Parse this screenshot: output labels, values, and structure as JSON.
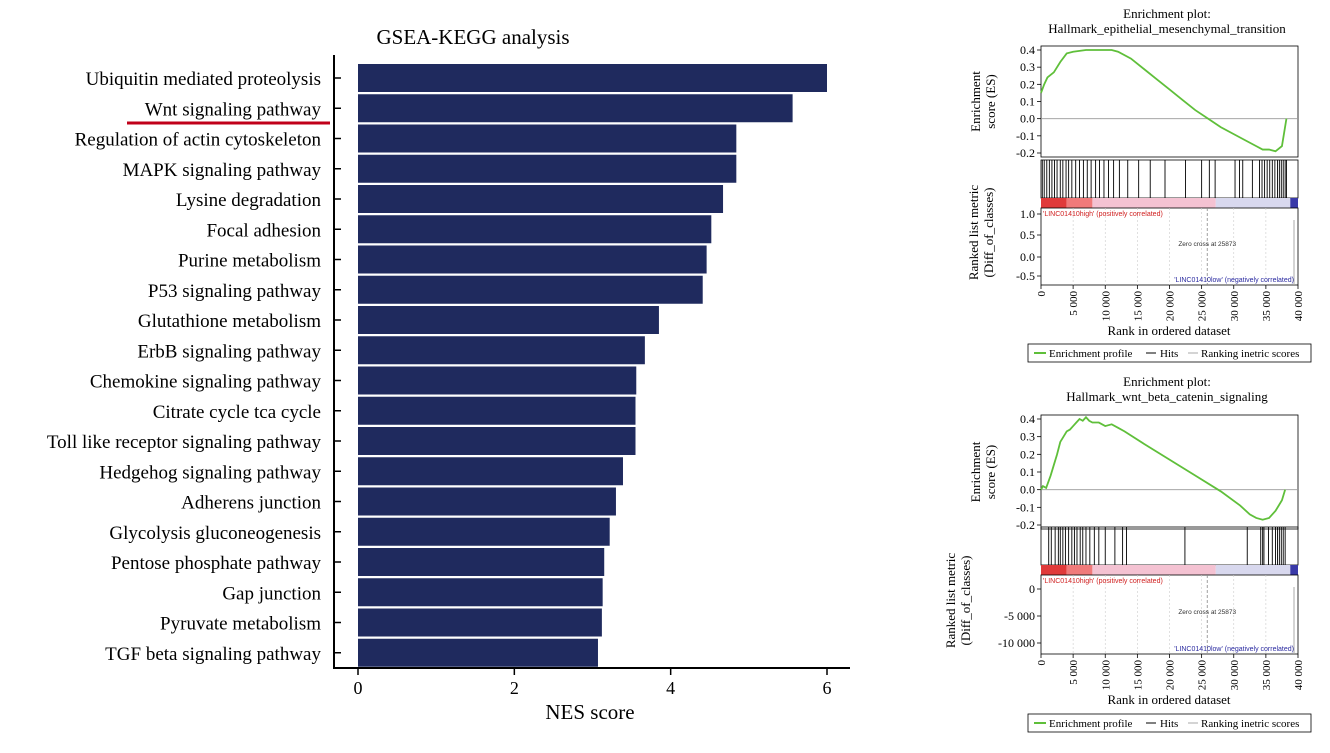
{
  "chart_data": [
    {
      "type": "bar",
      "orientation": "horizontal",
      "title": "GSEA-KEGG analysis",
      "xlabel": "NES score",
      "xlim": [
        0,
        6.3
      ],
      "xticks": [
        "0",
        "2",
        "4",
        "6"
      ],
      "highlight_category": "Wnt signaling pathway",
      "colors": {
        "bar": "#1f2a5e",
        "highlight_underline": "#c0001a"
      },
      "categories": [
        "Ubiquitin mediated proteolysis",
        "Wnt signaling pathway",
        "Regulation of actin cytoskeleton",
        "MAPK signaling pathway",
        "Lysine degradation",
        "Focal adhesion",
        "Purine metabolism",
        "P53 signaling pathway",
        "Glutathione metabolism",
        "ErbB signaling pathway",
        "Chemokine signaling pathway",
        "Citrate cycle tca cycle",
        "Toll like receptor signaling pathway",
        "Hedgehog signaling pathway",
        "Adherens junction",
        "Glycolysis gluconeogenesis",
        "Pentose phosphate pathway",
        "Gap junction",
        "Pyruvate metabolism",
        "TGF beta signaling pathway"
      ],
      "values": [
        6.0,
        5.56,
        4.84,
        4.84,
        4.67,
        4.52,
        4.46,
        4.41,
        3.85,
        3.67,
        3.56,
        3.55,
        3.55,
        3.39,
        3.3,
        3.22,
        3.15,
        3.13,
        3.12,
        3.07
      ]
    },
    {
      "type": "line",
      "title": "Enrichment plot:",
      "subtitle": "Hallmark_epithelial_mesenchymal_transition",
      "ylabel": "Enrichment\nscore (ES)",
      "ylim": [
        -0.2,
        0.4
      ],
      "yticks": [
        "0.4",
        "0.3",
        "0.2",
        "0.1",
        "0.0",
        "-0.1",
        "-0.2"
      ],
      "x": [
        0,
        500,
        1000,
        2000,
        3000,
        4000,
        5000,
        7000,
        9000,
        11000,
        12000,
        14000,
        16000,
        18000,
        20000,
        22000,
        24000,
        26000,
        28000,
        30000,
        32000,
        33500,
        34500,
        35500,
        36500,
        37500,
        38200
      ],
      "y": [
        0.15,
        0.2,
        0.24,
        0.27,
        0.33,
        0.38,
        0.39,
        0.4,
        0.4,
        0.4,
        0.39,
        0.35,
        0.29,
        0.23,
        0.17,
        0.11,
        0.05,
        0.0,
        -0.05,
        -0.09,
        -0.13,
        -0.16,
        -0.18,
        -0.18,
        -0.19,
        -0.16,
        0.0
      ],
      "hits": [
        200,
        500,
        900,
        1300,
        1700,
        2100,
        2500,
        3000,
        3400,
        3900,
        4300,
        4800,
        5400,
        6000,
        6600,
        7200,
        7800,
        8500,
        9100,
        9800,
        10500,
        11300,
        12200,
        13500,
        15200,
        17000,
        19300,
        22500,
        25000,
        26200,
        27100,
        30200,
        30900,
        31400,
        32900,
        34000,
        34400,
        34800,
        35200,
        35600,
        36000,
        36400,
        36800,
        37100,
        37400,
        37700,
        38000,
        38200
      ],
      "metric_ylabel": "Ranked list metric\n(Diff_of_classes)",
      "metric_yticks": [
        "1.0",
        "0.5",
        "0.0",
        "-0.5"
      ],
      "xlabel": "Rank in ordered dataset",
      "xticks": [
        "0",
        "5 000",
        "10 000",
        "15 000",
        "20 000",
        "25 000",
        "30 000",
        "35 000",
        "40 000"
      ],
      "pos_label": "'LINC01410high' (positively correlated)",
      "neg_label": "'LINC01410low' (negatively correlated)",
      "zero_cross": "Zero cross at 25873",
      "legend": [
        "Enrichment profile",
        "Hits",
        "Ranking inetric scores"
      ],
      "colors": {
        "profile": "#5fbf3a",
        "hits": "#000000"
      }
    },
    {
      "type": "line",
      "title": "Enrichment plot:",
      "subtitle": "Hallmark_wnt_beta_catenin_signaling",
      "ylabel": "Enrichment\nscore (ES)",
      "ylim": [
        -0.2,
        0.4
      ],
      "yticks": [
        "0.4",
        "0.3",
        "0.2",
        "0.1",
        "0.0",
        "-0.1",
        "-0.2"
      ],
      "x": [
        0,
        300,
        800,
        1500,
        2000,
        2500,
        3000,
        3500,
        4000,
        4500,
        5000,
        5500,
        6000,
        6500,
        7000,
        7500,
        8000,
        9000,
        10000,
        11000,
        12000,
        13000,
        16000,
        20000,
        24000,
        28000,
        31000,
        32500,
        33500,
        34500,
        35500,
        36500,
        37500,
        38000
      ],
      "y": [
        0.0,
        0.02,
        0.01,
        0.08,
        0.14,
        0.2,
        0.27,
        0.3,
        0.33,
        0.34,
        0.36,
        0.38,
        0.4,
        0.39,
        0.41,
        0.39,
        0.38,
        0.38,
        0.36,
        0.37,
        0.35,
        0.33,
        0.26,
        0.17,
        0.08,
        -0.01,
        -0.09,
        -0.14,
        -0.16,
        -0.17,
        -0.16,
        -0.12,
        -0.06,
        0.0
      ],
      "hits": [
        1200,
        1600,
        2200,
        2700,
        3000,
        3400,
        3800,
        4300,
        4800,
        5200,
        5600,
        6100,
        6500,
        7000,
        7600,
        8300,
        9000,
        10000,
        11500,
        12700,
        13300,
        22400,
        32100,
        34200,
        34500,
        34700,
        35400,
        36000,
        36500,
        36800,
        37100,
        37400,
        37700,
        38000
      ],
      "metric_ylabel": "Ranked list metric\n(Diff_of_classes)",
      "metric_yticks": [
        "0",
        "-5 000",
        "-10 000"
      ],
      "xlabel": "Rank in ordered dataset",
      "xticks": [
        "0",
        "5 000",
        "10 000",
        "15 000",
        "20 000",
        "25 000",
        "30 000",
        "35 000",
        "40 000"
      ],
      "pos_label": "'LINC01410high' (positively correlated)",
      "neg_label": "'LINC01410low' (negatively correlated)",
      "zero_cross": "Zero cross at 25873",
      "legend": [
        "Enrichment profile",
        "Hits",
        "Ranking inetric scores"
      ],
      "colors": {
        "profile": "#5fbf3a",
        "hits": "#000000"
      }
    }
  ]
}
